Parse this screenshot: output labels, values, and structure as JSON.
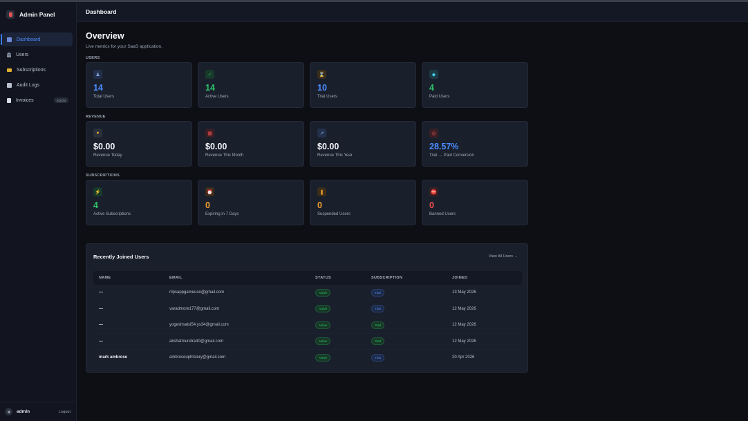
{
  "brand": {
    "title": "Admin Panel"
  },
  "sidebar": {
    "items": [
      {
        "label": "Dashboard",
        "icon": "chart-icon",
        "active": true
      },
      {
        "label": "Users",
        "icon": "user-icon"
      },
      {
        "label": "Subscriptions",
        "icon": "card-icon"
      },
      {
        "label": "Audit Logs",
        "icon": "clipboard-icon"
      },
      {
        "label": "Invoices",
        "icon": "document-icon",
        "badge": "SOON"
      }
    ],
    "footer": {
      "user": "admin",
      "logout": "Logout"
    }
  },
  "header": {
    "title": "Dashboard"
  },
  "overview": {
    "title": "Overview",
    "subtitle": "Live metrics for your SaaS application."
  },
  "sections": {
    "users": {
      "label": "USERS",
      "cards": [
        {
          "value": "14",
          "label": "Total Users",
          "icon": "user-icon"
        },
        {
          "value": "14",
          "label": "Active Users",
          "icon": "check-icon"
        },
        {
          "value": "10",
          "label": "Trial Users",
          "icon": "hourglass-icon"
        },
        {
          "value": "4",
          "label": "Paid Users",
          "icon": "diamond-icon"
        }
      ]
    },
    "revenue": {
      "label": "REVENUE",
      "cards": [
        {
          "value": "$0.00",
          "label": "Revenue Today",
          "icon": "money-bag-icon"
        },
        {
          "value": "$0.00",
          "label": "Revenue This Month",
          "icon": "calendar-icon"
        },
        {
          "value": "$0.00",
          "label": "Revenue This Year",
          "icon": "chart-up-icon"
        },
        {
          "value": "28.57%",
          "label": "Trial → Paid Conversion",
          "icon": "target-icon"
        }
      ]
    },
    "subscriptions": {
      "label": "SUBSCRIPTIONS",
      "cards": [
        {
          "value": "4",
          "label": "Active Subscriptions",
          "icon": "lightning-icon"
        },
        {
          "value": "0",
          "label": "Expiring in 7 Days",
          "icon": "alarm-clock-icon"
        },
        {
          "value": "0",
          "label": "Suspended Users",
          "icon": "pause-icon"
        },
        {
          "value": "0",
          "label": "Banned Users",
          "icon": "no-entry-icon"
        }
      ]
    }
  },
  "recent": {
    "title": "Recently Joined Users",
    "view_all": "View All Users →",
    "columns": [
      "NAME",
      "EMAIL",
      "STATUS",
      "SUBSCRIPTION",
      "JOINED"
    ],
    "rows": [
      {
        "name": "—",
        "email": "rilpsappgameuse@gmail.com",
        "status": "Active",
        "subscription": "Trial",
        "joined": "13 May 2026"
      },
      {
        "name": "—",
        "email": "varadmore177@gmail.com",
        "status": "Active",
        "subscription": "Trial",
        "joined": "12 May 2026"
      },
      {
        "name": "—",
        "email": "yogeshsalsi54.ys34@gmail.com",
        "status": "Active",
        "subscription": "Paid",
        "joined": "12 May 2026"
      },
      {
        "name": "—",
        "email": "akshatmundra40@gmail.com",
        "status": "Active",
        "subscription": "Paid",
        "joined": "12 May 2026"
      },
      {
        "name": "mark ambrose",
        "email": "ambroseuphlstery@gmail.com",
        "status": "Active",
        "subscription": "Trial",
        "joined": "20 Apr 2026"
      }
    ]
  },
  "colors": {
    "accent": "#4a8dff",
    "success": "#2ec26a",
    "warning": "#f0a030",
    "danger": "#ef4d4d",
    "background": "#0d0f14",
    "card": "#1a1f2c"
  }
}
